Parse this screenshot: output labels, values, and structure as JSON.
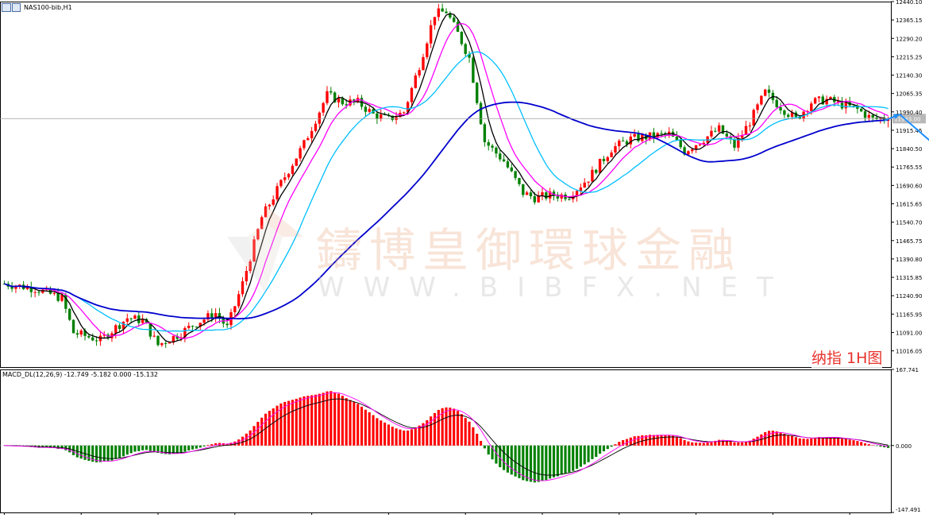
{
  "header": {
    "symbol_label": "NAS100-bib,H1",
    "icon": "chart-window-icon"
  },
  "indicator_label": "MACD_DL(12,26,9) -12.749 -5.182 0.000 -15.132",
  "timeframe_label": "纳指 1H图",
  "watermark": {
    "company": "鑄博皇御環球金融",
    "url": "WWW.BIBFX.NET"
  },
  "colors": {
    "bull": "#ff0000",
    "bear": "#008000",
    "ma_fast": "#000000",
    "ma_magenta": "#ff00ff",
    "ma_cyan": "#00bfff",
    "ma_slow": "#0000cd",
    "arrow": "#1e90ff",
    "macd_signal": "#ff00ff",
    "macd_line": "#000000"
  },
  "chart_data": [
    {
      "type": "candlestick",
      "symbol": "NAS100-bib",
      "timeframe": "H1",
      "y_axis_ticks": [
        "12440.10",
        "12365.15",
        "12290.20",
        "12215.25",
        "12140.30",
        "12065.35",
        "11990.40",
        "11915.45",
        "11840.50",
        "11765.55",
        "11690.60",
        "11615.65",
        "11540.70",
        "11465.75",
        "11390.80",
        "11315.85",
        "11240.90",
        "11165.95",
        "11091.00",
        "11016.05"
      ],
      "ylim": [
        10950,
        12440.1
      ],
      "current_price": "11963.00",
      "bars_count": 231,
      "trend_path": [
        [
          0,
          11290
        ],
        [
          8,
          11270
        ],
        [
          15,
          11230
        ],
        [
          18,
          11090
        ],
        [
          25,
          11060
        ],
        [
          32,
          11150
        ],
        [
          36,
          11140
        ],
        [
          40,
          11040
        ],
        [
          45,
          11080
        ],
        [
          50,
          11130
        ],
        [
          55,
          11170
        ],
        [
          58,
          11110
        ],
        [
          62,
          11290
        ],
        [
          67,
          11560
        ],
        [
          72,
          11700
        ],
        [
          78,
          11860
        ],
        [
          84,
          12060
        ],
        [
          88,
          12030
        ],
        [
          92,
          12030
        ],
        [
          96,
          11980
        ],
        [
          100,
          11960
        ],
        [
          104,
          11990
        ],
        [
          108,
          12180
        ],
        [
          112,
          12390
        ],
        [
          115,
          12400
        ],
        [
          118,
          12310
        ],
        [
          121,
          12210
        ],
        [
          125,
          11870
        ],
        [
          130,
          11790
        ],
        [
          135,
          11660
        ],
        [
          138,
          11640
        ],
        [
          142,
          11650
        ],
        [
          147,
          11650
        ],
        [
          152,
          11720
        ],
        [
          158,
          11840
        ],
        [
          163,
          11880
        ],
        [
          168,
          11890
        ],
        [
          173,
          11900
        ],
        [
          177,
          11830
        ],
        [
          182,
          11880
        ],
        [
          186,
          11920
        ],
        [
          190,
          11850
        ],
        [
          194,
          11950
        ],
        [
          198,
          12070
        ],
        [
          202,
          12010
        ],
        [
          206,
          11960
        ],
        [
          210,
          12030
        ],
        [
          214,
          12040
        ],
        [
          218,
          12020
        ],
        [
          222,
          12000
        ],
        [
          226,
          11960
        ],
        [
          230,
          11963
        ]
      ],
      "moving_averages": [
        {
          "name": "fast",
          "period": 5,
          "color": "#000000"
        },
        {
          "name": "medium",
          "period": 10,
          "color": "#ff00ff"
        },
        {
          "name": "slow",
          "period": 20,
          "color": "#00bfff"
        },
        {
          "name": "long",
          "period": 60,
          "color": "#0000cd"
        }
      ],
      "projection_arrows": [
        {
          "from": [
            229,
            11955
          ],
          "to": [
            233,
            11980
          ],
          "color": "#1e90ff"
        },
        {
          "from": [
            233,
            11980
          ],
          "to": [
            244,
            11830
          ],
          "color": "#1e90ff"
        }
      ]
    },
    {
      "type": "macd-histogram",
      "params": "MACD_DL(12,26,9)",
      "values_text": "-12.749 -5.182 0.000 -15.132",
      "y_axis_ticks": [
        "167.741",
        "0.000",
        "-147.491"
      ],
      "ylim": [
        -147.491,
        167.741
      ],
      "last": {
        "macd": -12.749,
        "signal": -5.182,
        "hist": -15.132
      }
    }
  ]
}
